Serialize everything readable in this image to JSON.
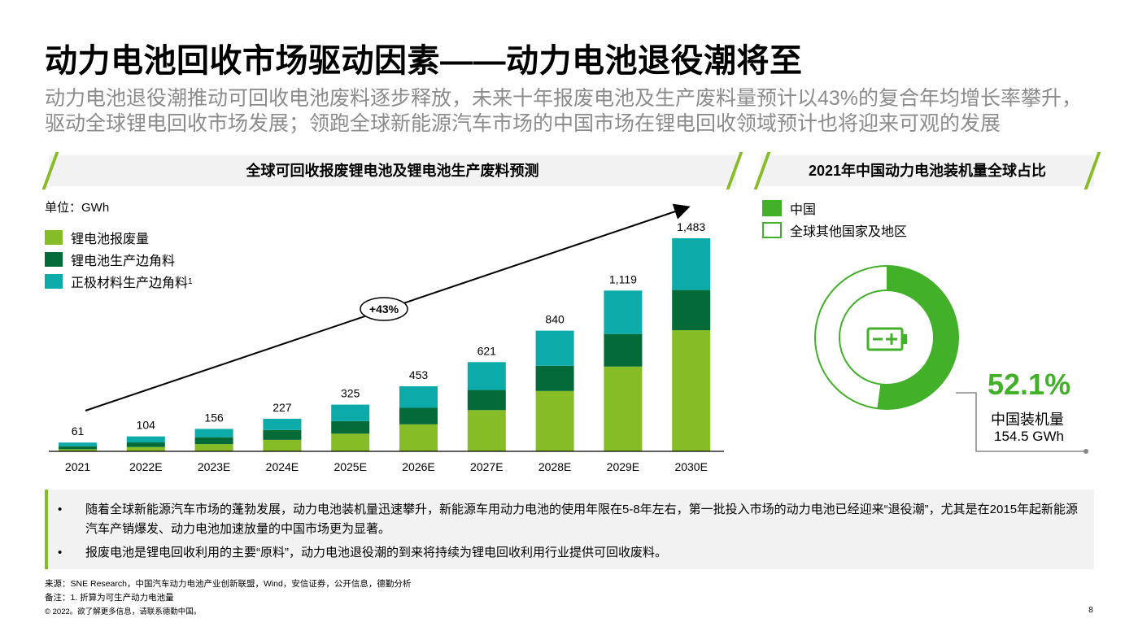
{
  "title": "动力电池回收市场驱动因素——动力电池退役潮将至",
  "subtitle": "动力电池退役潮推动可回收电池废料逐步释放，未来十年报废电池及生产废料量预计以43%的复合年均增长率攀升，驱动全球锂电回收市场发展；领跑全球新能源汽车市场的中国市场在锂电回收领域预计也将迎来可观的发展",
  "left_panel": {
    "header": "全球可回收报废锂电池及锂电池生产废料预测",
    "unit": "单位：GWh",
    "growth_label": "+43%",
    "colors": {
      "scrap": "#86bc25",
      "production": "#046a38",
      "cathode": "#0daaaa"
    }
  },
  "right_panel": {
    "header": "2021年中国动力电池装机量全球占比",
    "legend": [
      "中国",
      "全球其他国家及地区"
    ],
    "percent": "52.1%",
    "label": "中国装机量",
    "value": "154.5 GWh",
    "share": 0.521,
    "icon": "battery-charging-icon",
    "colors": {
      "china": "#43b02a",
      "other": "#ffffff",
      "ring_outline": "#43b02a"
    }
  },
  "chart_data": [
    {
      "type": "bar",
      "stacked": true,
      "categories": [
        "2021",
        "2022E",
        "2023E",
        "2024E",
        "2025E",
        "2026E",
        "2027E",
        "2028E",
        "2029E",
        "2030E"
      ],
      "totals": [
        "61",
        "104",
        "156",
        "227",
        "325",
        "453",
        "621",
        "840",
        "1,119",
        "1,483"
      ],
      "total_values": [
        61,
        104,
        156,
        227,
        325,
        453,
        621,
        840,
        1119,
        1483
      ],
      "series": [
        {
          "name": "锂电池报废量",
          "values": [
            15,
            30,
            50,
            80,
            123,
            188,
            287,
            420,
            590,
            843
          ]
        },
        {
          "name": "锂电池生产边角料",
          "values": [
            20,
            32,
            48,
            68,
            87,
            115,
            140,
            175,
            227,
            280
          ]
        },
        {
          "name": "正极材料生产边角料",
          "name_sup": "1",
          "values": [
            26,
            42,
            58,
            79,
            115,
            150,
            194,
            245,
            302,
            360
          ]
        }
      ],
      "ylim": [
        0,
        1600
      ],
      "legend_position": "top-left"
    },
    {
      "type": "pie",
      "donut": true,
      "labels": [
        "中国",
        "全球其他国家及地区"
      ],
      "values": [
        52.1,
        47.9
      ]
    }
  ],
  "bullets": [
    "随着全球新能源汽车市场的蓬勃发展，动力电池装机量迅速攀升，新能源车用动力电池的使用年限在5-8年左右，第一批投入市场的动力电池已经迎来“退役潮”，尤其是在2015年起新能源汽车产销爆发、动力电池加速放量的中国市场更为显著。",
    "报废电池是锂电回收利用的主要“原料”，动力电池退役潮的到来将持续为锂电回收利用行业提供可回收废料。"
  ],
  "bullet_marker": "•",
  "footer": {
    "source": "来源：SNE Research，中国汽车动力电池产业创新联盟，Wind，安信证券，公开信息，德勤分析",
    "note": "备注：1. 折算为可生产动力电池量",
    "copyright": "© 2022。欲了解更多信息，请联系德勤中国。",
    "page": "8"
  }
}
